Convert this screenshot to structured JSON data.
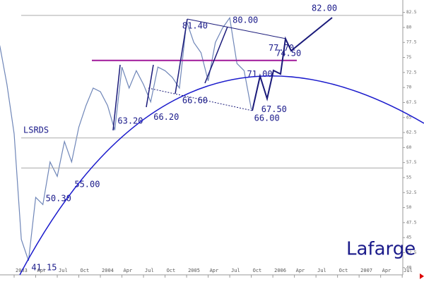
{
  "chart_data": {
    "type": "line",
    "title": "Lafarge",
    "x": [
      "2002-11",
      "2002-12",
      "2003-01",
      "2003-02",
      "2003-03",
      "2003-04",
      "2003-05",
      "2003-06",
      "2003-07",
      "2003-08",
      "2003-09",
      "2003-10",
      "2003-11",
      "2003-12",
      "2004-01",
      "2004-02",
      "2004-03",
      "2004-04",
      "2004-05",
      "2004-06",
      "2004-07",
      "2004-08",
      "2004-09",
      "2004-10",
      "2004-11",
      "2004-12",
      "2005-01",
      "2005-02",
      "2005-03",
      "2005-04",
      "2005-05",
      "2005-06",
      "2005-07",
      "2005-08",
      "2005-09",
      "2005-10"
    ],
    "series": [
      {
        "name": "Lafarge",
        "color": "#6f86b8",
        "values": [
          77,
          70.5,
          62.3,
          44.7,
          41.15,
          51.7,
          50.5,
          57.6,
          55.2,
          61,
          57.6,
          63.4,
          67,
          69.9,
          69.3,
          67,
          62.9,
          73.4,
          69.9,
          72.8,
          70.5,
          67.6,
          73.4,
          72.8,
          71.7,
          69.9,
          81,
          77.5,
          75.8,
          71.1,
          77.5,
          79.9,
          81.6,
          74,
          72.8,
          66.4
        ]
      }
    ],
    "annotations": [
      {
        "x": "2003-03",
        "value": 41.15,
        "label": "41.15"
      },
      {
        "x": "2003-05",
        "value": 50.3,
        "label": "50.30"
      },
      {
        "x": "2003-09",
        "value": 55,
        "label": "55.00"
      },
      {
        "x": "2004-03",
        "value": 63.2,
        "label": "63.20"
      },
      {
        "x": "2004-08",
        "value": 66.2,
        "label": "66.20"
      },
      {
        "x": "2004-12",
        "value": 66.6,
        "label": "66.60"
      },
      {
        "x": "2004-12",
        "value": 81.4,
        "label": "81.40"
      },
      {
        "x": "2005-07",
        "value": 80,
        "label": "80.00"
      },
      {
        "x": "2005-10",
        "value": 66,
        "label": "66.00"
      },
      {
        "x": "2005-09",
        "value": 71,
        "label": "71.00"
      },
      {
        "x": "2005-11",
        "value": 67.5,
        "label": "67.50"
      },
      {
        "x": "2006-01",
        "value": 74.5,
        "label": "74.50"
      },
      {
        "x": "2005-12",
        "value": 77.7,
        "label": "77.70"
      },
      {
        "x": "2006-06",
        "value": 82,
        "label": "82.00"
      }
    ],
    "lsrds_label": "LSRDS",
    "resistance": {
      "value": 74.5,
      "color": "#a0189a"
    },
    "reference_lines": [
      82,
      61.6,
      56.6
    ],
    "ylim": [
      38.8,
      84.57
    ],
    "yticks": [
      40,
      42.5,
      45,
      47.5,
      50,
      52.5,
      55,
      57.5,
      60,
      62.5,
      65,
      67.5,
      70,
      72.5,
      75,
      77.5,
      80,
      82.5
    ],
    "xticks": [
      {
        "value": "2003-01",
        "label": "2003"
      },
      {
        "value": "2003-04",
        "label": "Apr"
      },
      {
        "value": "2003-07",
        "label": "Jul"
      },
      {
        "value": "2003-10",
        "label": "Oct"
      },
      {
        "value": "2004-01",
        "label": "2004"
      },
      {
        "value": "2004-04",
        "label": "Apr"
      },
      {
        "value": "2004-07",
        "label": "Jul"
      },
      {
        "value": "2004-10",
        "label": "Oct"
      },
      {
        "value": "2005-01",
        "label": "2005"
      },
      {
        "value": "2005-04",
        "label": "Apr"
      },
      {
        "value": "2005-07",
        "label": "Jul"
      },
      {
        "value": "2005-10",
        "label": "Oct"
      },
      {
        "value": "2006-01",
        "label": "2006"
      },
      {
        "value": "2006-04",
        "label": "Apr"
      },
      {
        "value": "2006-07",
        "label": "Jul"
      },
      {
        "value": "2006-10",
        "label": "Oct"
      },
      {
        "value": "2007-01",
        "label": "2007"
      },
      {
        "value": "2007-04",
        "label": "Apr"
      },
      {
        "value": "2007-07",
        "label": "Jul"
      }
    ]
  }
}
